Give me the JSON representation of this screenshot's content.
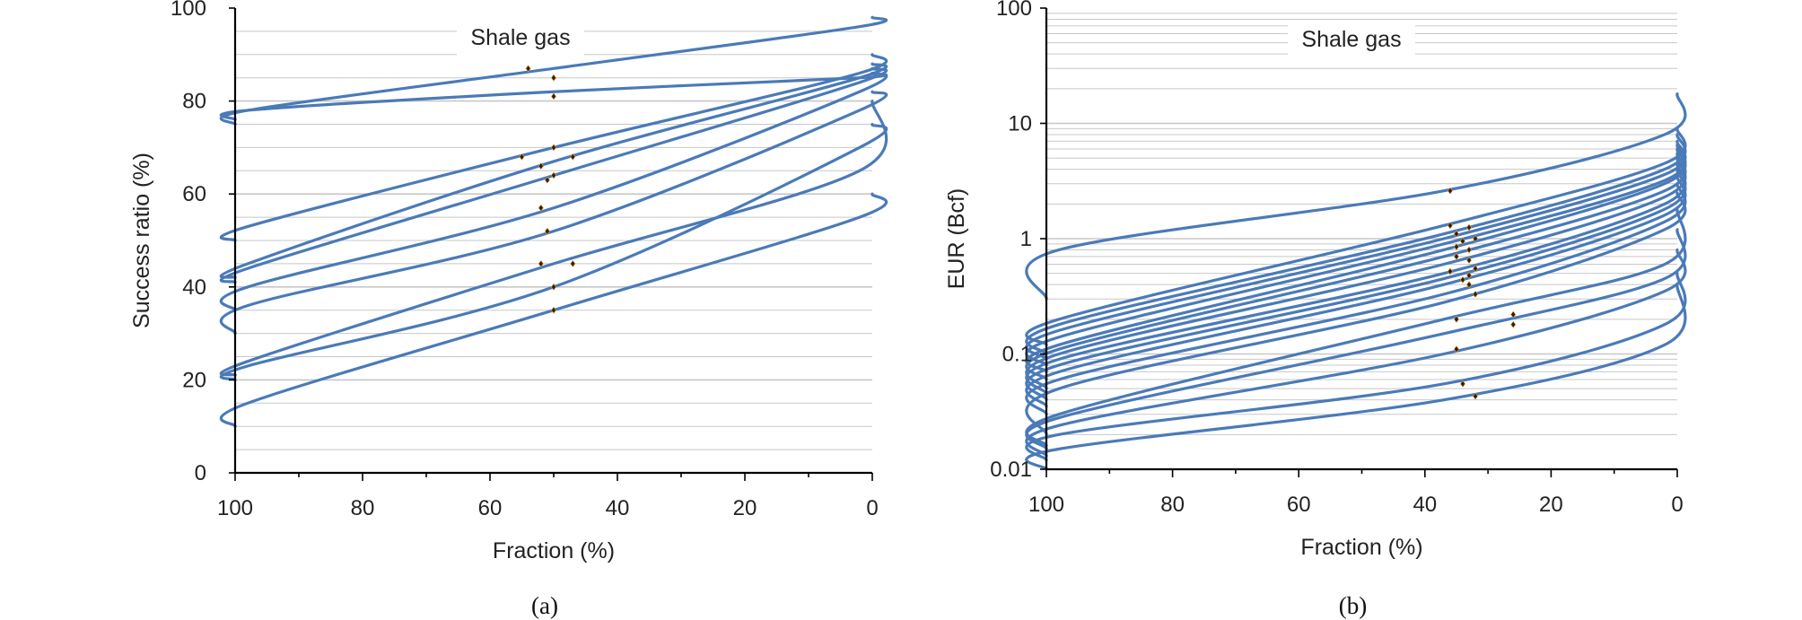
{
  "colors": {
    "series": "#4a7ab8",
    "grid": "#c8c8c8",
    "marker": "#3b1a06",
    "axis": "#000000"
  },
  "chart_data": [
    {
      "panel": "a",
      "type": "line",
      "title": "Shale gas",
      "caption": "(a)",
      "xlabel": "Fraction (%)",
      "ylabel": "Success ratio (%)",
      "xlim": [
        100,
        0
      ],
      "ylim": [
        0,
        100
      ],
      "yscale": "linear",
      "xticks": [
        100,
        80,
        60,
        40,
        20,
        0
      ],
      "yticks": [
        0,
        20,
        40,
        60,
        80,
        100
      ],
      "xtick_labels": [
        "100",
        "80",
        "60",
        "40",
        "20",
        "0"
      ],
      "ytick_labels": [
        "0",
        "20",
        "40",
        "60",
        "80",
        "100"
      ],
      "grid": true,
      "legend": "none",
      "series": [
        {
          "x": [
            100,
            98,
            50,
            2,
            0
          ],
          "y": [
            75,
            78,
            87,
            96,
            98
          ]
        },
        {
          "x": [
            100,
            98,
            50,
            2,
            0
          ],
          "y": [
            76,
            78,
            82,
            85,
            86
          ]
        },
        {
          "x": [
            100,
            98,
            50,
            2,
            0
          ],
          "y": [
            50,
            53,
            70,
            86,
            90
          ]
        },
        {
          "x": [
            100,
            98,
            50,
            2,
            0
          ],
          "y": [
            42,
            45,
            67,
            85,
            88
          ]
        },
        {
          "x": [
            100,
            98,
            50,
            2,
            0
          ],
          "y": [
            41,
            44,
            64,
            84,
            87
          ]
        },
        {
          "x": [
            100,
            98,
            50,
            2,
            0
          ],
          "y": [
            35,
            40,
            57,
            82,
            86
          ]
        },
        {
          "x": [
            100,
            98,
            50,
            2,
            0
          ],
          "y": [
            30,
            36,
            52,
            78,
            82
          ]
        },
        {
          "x": [
            100,
            98,
            50,
            2,
            0
          ],
          "y": [
            21,
            24,
            45,
            65,
            80
          ]
        },
        {
          "x": [
            100,
            98,
            50,
            2,
            0
          ],
          "y": [
            20,
            23,
            40,
            70,
            75
          ]
        },
        {
          "x": [
            100,
            98,
            50,
            2,
            0
          ],
          "y": [
            10,
            15,
            35,
            55,
            60
          ]
        }
      ],
      "markers": [
        {
          "x": 54,
          "y": 87
        },
        {
          "x": 50,
          "y": 85
        },
        {
          "x": 50,
          "y": 81
        },
        {
          "x": 55,
          "y": 68
        },
        {
          "x": 50,
          "y": 70
        },
        {
          "x": 47,
          "y": 68
        },
        {
          "x": 52,
          "y": 66
        },
        {
          "x": 51,
          "y": 63
        },
        {
          "x": 50,
          "y": 64
        },
        {
          "x": 52,
          "y": 57
        },
        {
          "x": 51,
          "y": 52
        },
        {
          "x": 52,
          "y": 45
        },
        {
          "x": 47,
          "y": 45
        },
        {
          "x": 50,
          "y": 40
        },
        {
          "x": 50,
          "y": 35
        }
      ]
    },
    {
      "panel": "b",
      "type": "line",
      "title": "Shale gas",
      "caption": "(b)",
      "xlabel": "Fraction (%)",
      "ylabel": "EUR (Bcf)",
      "xlim": [
        100,
        0
      ],
      "ylim": [
        0.01,
        100
      ],
      "yscale": "log",
      "xticks": [
        100,
        80,
        60,
        40,
        20,
        0
      ],
      "yticks": [
        0.01,
        0.1,
        1,
        10,
        100
      ],
      "xtick_labels": [
        "100",
        "80",
        "60",
        "40",
        "20",
        "0"
      ],
      "ytick_labels": [
        "0.01",
        "0.1",
        "1",
        "10",
        "100"
      ],
      "grid": true,
      "legend": "none",
      "series": [
        {
          "x": [
            100,
            98,
            37,
            2,
            0
          ],
          "y": [
            0.3,
            0.8,
            2.6,
            8.0,
            18
          ]
        },
        {
          "x": [
            100,
            98,
            37,
            2,
            0
          ],
          "y": [
            0.12,
            0.2,
            1.3,
            4.5,
            9.0
          ]
        },
        {
          "x": [
            100,
            98,
            37,
            2,
            0
          ],
          "y": [
            0.1,
            0.18,
            1.1,
            4.0,
            8.0
          ]
        },
        {
          "x": [
            100,
            98,
            37,
            2,
            0
          ],
          "y": [
            0.09,
            0.16,
            1.0,
            3.6,
            7.0
          ]
        },
        {
          "x": [
            100,
            98,
            37,
            2,
            0
          ],
          "y": [
            0.08,
            0.14,
            0.9,
            3.2,
            6.5
          ]
        },
        {
          "x": [
            100,
            98,
            37,
            2,
            0
          ],
          "y": [
            0.07,
            0.12,
            0.8,
            3.0,
            6.0
          ]
        },
        {
          "x": [
            100,
            98,
            37,
            2,
            0
          ],
          "y": [
            0.06,
            0.11,
            0.7,
            2.6,
            5.5
          ]
        },
        {
          "x": [
            100,
            98,
            37,
            2,
            0
          ],
          "y": [
            0.05,
            0.1,
            0.6,
            2.3,
            5.0
          ]
        },
        {
          "x": [
            100,
            98,
            37,
            2,
            0
          ],
          "y": [
            0.045,
            0.09,
            0.5,
            2.0,
            4.5
          ]
        },
        {
          "x": [
            100,
            98,
            37,
            2,
            0
          ],
          "y": [
            0.04,
            0.08,
            0.45,
            1.8,
            4.0
          ]
        },
        {
          "x": [
            100,
            98,
            37,
            2,
            0
          ],
          "y": [
            0.035,
            0.07,
            0.4,
            1.6,
            3.5
          ]
        },
        {
          "x": [
            100,
            98,
            37,
            2,
            0
          ],
          "y": [
            0.03,
            0.06,
            0.33,
            1.4,
            3.0
          ]
        },
        {
          "x": [
            100,
            98,
            37,
            2,
            0
          ],
          "y": [
            0.02,
            0.05,
            0.28,
            1.2,
            2.5
          ]
        },
        {
          "x": [
            100,
            98,
            37,
            2,
            0
          ],
          "y": [
            0.016,
            0.03,
            0.2,
            0.6,
            1.8
          ]
        },
        {
          "x": [
            100,
            98,
            37,
            2,
            0
          ],
          "y": [
            0.015,
            0.028,
            0.15,
            0.45,
            1.2
          ]
        },
        {
          "x": [
            100,
            98,
            37,
            2,
            0
          ],
          "y": [
            0.013,
            0.024,
            0.1,
            0.35,
            0.8
          ]
        },
        {
          "x": [
            100,
            98,
            37,
            2,
            0
          ],
          "y": [
            0.012,
            0.02,
            0.055,
            0.18,
            0.5
          ]
        },
        {
          "x": [
            100,
            98,
            37,
            2,
            0
          ],
          "y": [
            0.01,
            0.015,
            0.04,
            0.12,
            0.4
          ]
        }
      ],
      "markers": [
        {
          "x": 36,
          "y": 2.6
        },
        {
          "x": 36,
          "y": 1.3
        },
        {
          "x": 33,
          "y": 1.25
        },
        {
          "x": 35,
          "y": 1.1
        },
        {
          "x": 32,
          "y": 1.0
        },
        {
          "x": 34,
          "y": 0.95
        },
        {
          "x": 35,
          "y": 0.85
        },
        {
          "x": 33,
          "y": 0.8
        },
        {
          "x": 35,
          "y": 0.7
        },
        {
          "x": 33,
          "y": 0.65
        },
        {
          "x": 32,
          "y": 0.55
        },
        {
          "x": 36,
          "y": 0.52
        },
        {
          "x": 33,
          "y": 0.48
        },
        {
          "x": 34,
          "y": 0.44
        },
        {
          "x": 33,
          "y": 0.4
        },
        {
          "x": 32,
          "y": 0.33
        },
        {
          "x": 26,
          "y": 0.22
        },
        {
          "x": 35,
          "y": 0.2
        },
        {
          "x": 26,
          "y": 0.18
        },
        {
          "x": 35,
          "y": 0.11
        },
        {
          "x": 34,
          "y": 0.055
        },
        {
          "x": 32,
          "y": 0.043
        }
      ]
    }
  ]
}
